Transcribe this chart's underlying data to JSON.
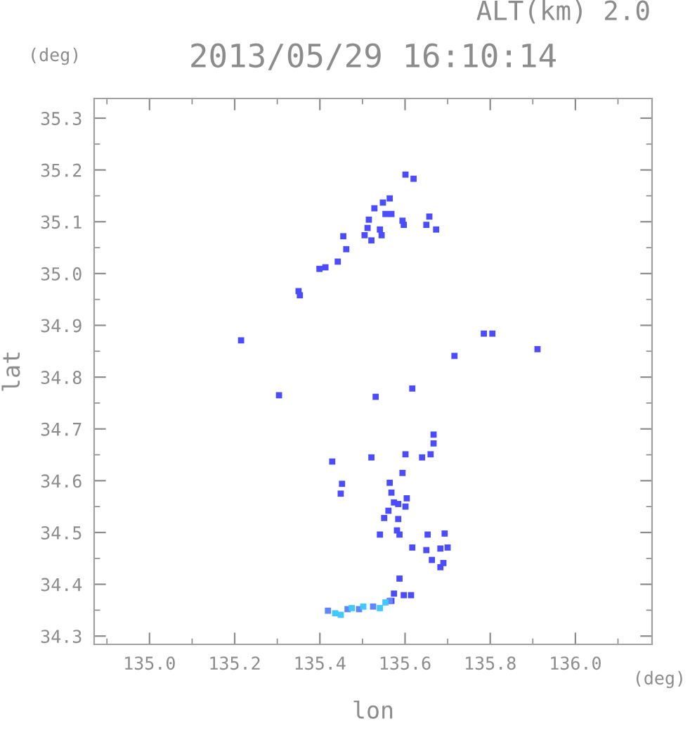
{
  "chart_data": {
    "type": "scatter",
    "title": "2013/05/29 16:10:14",
    "xlabel": "lon",
    "ylabel": "lat",
    "annotations": [
      "ALT(km) 2.0",
      "(deg)",
      "(deg)"
    ],
    "xlim": [
      134.87,
      136.18
    ],
    "ylim": [
      34.284,
      35.338
    ],
    "xticks": [
      {
        "value": 134.9,
        "label": null
      },
      {
        "value": 135.0,
        "label": "135.0"
      },
      {
        "value": 135.1,
        "label": null
      },
      {
        "value": 135.2,
        "label": "135.2"
      },
      {
        "value": 135.3,
        "label": null
      },
      {
        "value": 135.4,
        "label": "135.4"
      },
      {
        "value": 135.5,
        "label": null
      },
      {
        "value": 135.6,
        "label": "135.6"
      },
      {
        "value": 135.7,
        "label": null
      },
      {
        "value": 135.8,
        "label": "135.8"
      },
      {
        "value": 135.9,
        "label": null
      },
      {
        "value": 136.0,
        "label": "136.0"
      },
      {
        "value": 136.1,
        "label": null
      }
    ],
    "yticks": [
      {
        "value": 34.3,
        "label": "34.3"
      },
      {
        "value": 34.35,
        "label": null
      },
      {
        "value": 34.4,
        "label": "34.4"
      },
      {
        "value": 34.45,
        "label": null
      },
      {
        "value": 34.5,
        "label": "34.5"
      },
      {
        "value": 34.55,
        "label": null
      },
      {
        "value": 34.6,
        "label": "34.6"
      },
      {
        "value": 34.65,
        "label": null
      },
      {
        "value": 34.7,
        "label": "34.7"
      },
      {
        "value": 34.75,
        "label": null
      },
      {
        "value": 34.8,
        "label": "34.8"
      },
      {
        "value": 34.85,
        "label": null
      },
      {
        "value": 34.9,
        "label": "34.9"
      },
      {
        "value": 34.95,
        "label": null
      },
      {
        "value": 35.0,
        "label": "35.0"
      },
      {
        "value": 35.05,
        "label": null
      },
      {
        "value": 35.1,
        "label": "35.1"
      },
      {
        "value": 35.15,
        "label": null
      },
      {
        "value": 35.2,
        "label": "35.2"
      },
      {
        "value": 35.25,
        "label": null
      },
      {
        "value": 35.3,
        "label": "35.3"
      }
    ],
    "marker": "square",
    "series": [
      {
        "color": "#4c4cff",
        "x": [
          135.601,
          135.62,
          135.564,
          135.548,
          135.528,
          135.554,
          135.568,
          135.515,
          135.594,
          135.597,
          135.657,
          135.65,
          135.673,
          135.512,
          135.541,
          135.545,
          135.505,
          135.521,
          135.455,
          135.462,
          135.442,
          135.413,
          135.399,
          135.35,
          135.353,
          135.785,
          135.805,
          135.716,
          135.215,
          135.911,
          135.304,
          135.531,
          135.617,
          135.667,
          135.667,
          135.66,
          135.64,
          135.601,
          135.521,
          135.429,
          135.594,
          135.452,
          135.449,
          135.564,
          135.568,
          135.574,
          135.604,
          135.601,
          135.584,
          135.561,
          135.551,
          135.584,
          135.581,
          135.587,
          135.541,
          135.653,
          135.693,
          135.617,
          135.65,
          135.683,
          135.7,
          135.663,
          135.69,
          135.683,
          135.587,
          135.574,
          135.597,
          135.614,
          135.568
        ],
        "values": [
          35.191,
          35.183,
          35.145,
          35.137,
          35.126,
          35.115,
          35.115,
          35.104,
          35.102,
          35.094,
          35.11,
          35.094,
          35.085,
          35.088,
          35.085,
          35.074,
          35.074,
          35.064,
          35.072,
          35.047,
          35.023,
          35.012,
          35.009,
          34.966,
          34.958,
          34.884,
          34.884,
          34.841,
          34.871,
          34.854,
          34.765,
          34.762,
          34.778,
          34.689,
          34.672,
          34.651,
          34.645,
          34.651,
          34.645,
          34.637,
          34.615,
          34.594,
          34.575,
          34.596,
          34.577,
          34.558,
          34.566,
          34.55,
          34.555,
          34.542,
          34.528,
          34.526,
          34.504,
          34.496,
          34.496,
          34.496,
          34.498,
          34.471,
          34.466,
          34.469,
          34.471,
          34.447,
          34.441,
          34.433,
          34.411,
          34.382,
          34.379,
          34.379,
          34.368
        ]
      },
      {
        "color": "#5f86ff",
        "x": [
          135.419,
          135.465,
          135.492,
          135.525,
          135.564
        ],
        "values": [
          34.349,
          34.352,
          34.352,
          34.357,
          34.368
        ]
      },
      {
        "color": "#40c8ff",
        "x": [
          135.436,
          135.449,
          135.475,
          135.502,
          135.541,
          135.554
        ],
        "values": [
          34.344,
          34.341,
          34.354,
          34.357,
          34.354,
          34.365
        ]
      }
    ]
  }
}
